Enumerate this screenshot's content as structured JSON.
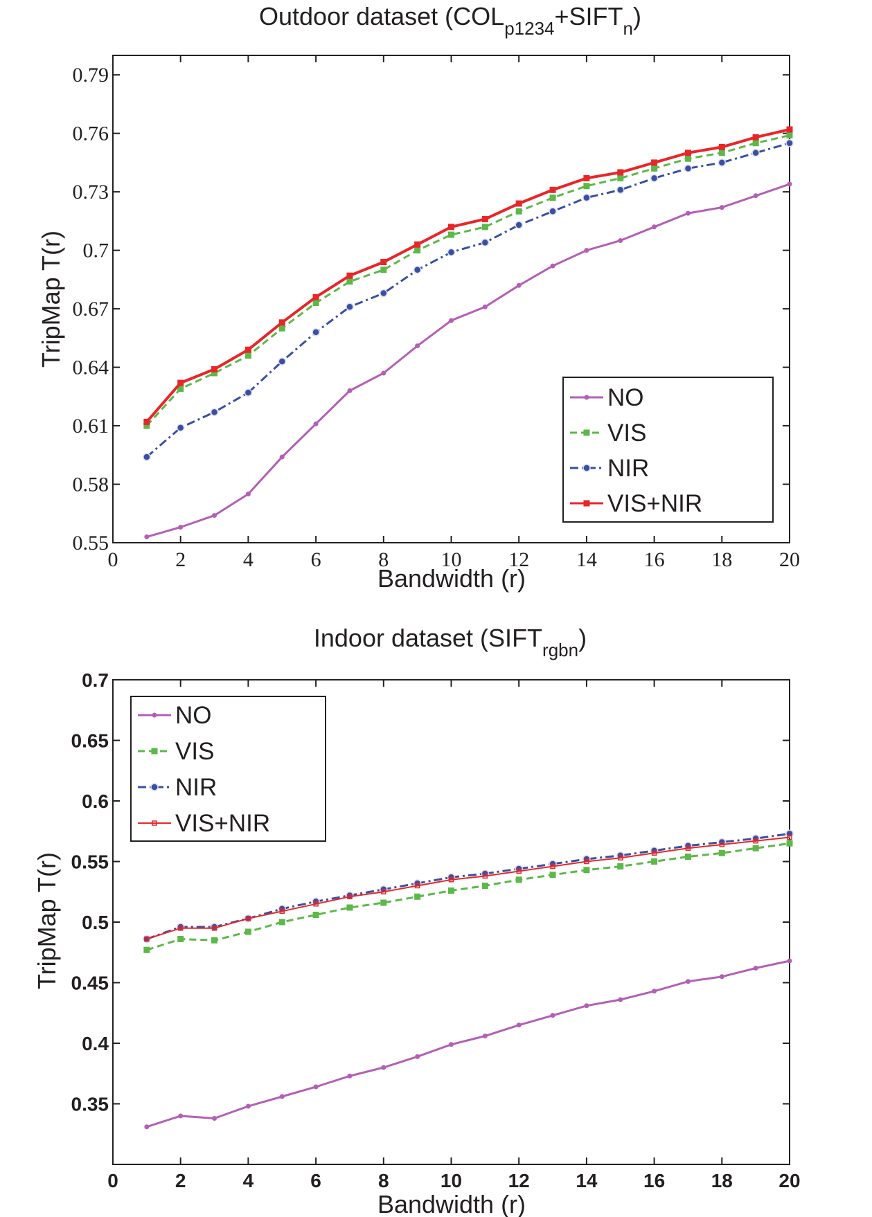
{
  "chart_data": [
    {
      "type": "line",
      "title": "Outdoor dataset (COL",
      "title_sub1": "p1234",
      "title_mid": "+SIFT",
      "title_sub2": "n",
      "title_end": ")",
      "xlabel": "Bandwidth (r)",
      "ylabel": "TripMap T(r)",
      "xlim": [
        0,
        20
      ],
      "ylim": [
        0.55,
        0.8
      ],
      "xticks": [
        "0",
        "2",
        "4",
        "6",
        "8",
        "10",
        "12",
        "14",
        "16",
        "18",
        "20"
      ],
      "yticks": [
        "0.55",
        "0.58",
        "0.61",
        "0.64",
        "0.67",
        "0.7",
        "0.73",
        "0.76",
        "0.79"
      ],
      "legend_position": "lower-right",
      "grid": false,
      "x": [
        1,
        2,
        3,
        4,
        5,
        6,
        7,
        8,
        9,
        10,
        11,
        12,
        13,
        14,
        15,
        16,
        17,
        18,
        19,
        20
      ],
      "series": [
        {
          "name": "NO",
          "color": "#b35fb5",
          "style": "solid",
          "marker": "dot",
          "values": [
            0.553,
            0.558,
            0.564,
            0.575,
            0.594,
            0.611,
            0.628,
            0.637,
            0.651,
            0.664,
            0.671,
            0.682,
            0.692,
            0.7,
            0.705,
            0.712,
            0.719,
            0.722,
            0.728,
            0.734
          ]
        },
        {
          "name": "VIS",
          "color": "#5cb848",
          "style": "dashed",
          "marker": "square",
          "values": [
            0.61,
            0.629,
            0.637,
            0.646,
            0.66,
            0.673,
            0.684,
            0.69,
            0.7,
            0.708,
            0.712,
            0.72,
            0.727,
            0.733,
            0.737,
            0.742,
            0.747,
            0.75,
            0.755,
            0.759
          ]
        },
        {
          "name": "NIR",
          "color": "#3a4fa0",
          "style": "dashdot",
          "marker": "circle",
          "values": [
            0.594,
            0.609,
            0.617,
            0.627,
            0.643,
            0.658,
            0.671,
            0.678,
            0.69,
            0.699,
            0.704,
            0.713,
            0.72,
            0.727,
            0.731,
            0.737,
            0.742,
            0.745,
            0.75,
            0.755
          ]
        },
        {
          "name": "VIS+NIR",
          "color": "#e8262a",
          "style": "solid",
          "marker": "square",
          "values": [
            0.612,
            0.632,
            0.639,
            0.649,
            0.663,
            0.676,
            0.687,
            0.694,
            0.703,
            0.712,
            0.716,
            0.724,
            0.731,
            0.737,
            0.74,
            0.745,
            0.75,
            0.753,
            0.758,
            0.762
          ]
        }
      ]
    },
    {
      "type": "line",
      "title": "Indoor dataset (SIFT",
      "title_sub1": "rgbn",
      "title_end": ")",
      "xlabel": "Bandwidth (r)",
      "ylabel": "TripMap T(r)",
      "xlim": [
        0,
        20
      ],
      "ylim": [
        0.3,
        0.7
      ],
      "xticks": [
        "0",
        "2",
        "4",
        "6",
        "8",
        "10",
        "12",
        "14",
        "16",
        "18",
        "20"
      ],
      "yticks": [
        "0.35",
        "0.4",
        "0.45",
        "0.5",
        "0.55",
        "0.6",
        "0.65",
        "0.7"
      ],
      "legend_position": "top-left",
      "grid": false,
      "x": [
        1,
        2,
        3,
        4,
        5,
        6,
        7,
        8,
        9,
        10,
        11,
        12,
        13,
        14,
        15,
        16,
        17,
        18,
        19,
        20
      ],
      "series": [
        {
          "name": "NO",
          "color": "#b35fb5",
          "style": "solid",
          "marker": "dot",
          "values": [
            0.331,
            0.34,
            0.338,
            0.348,
            0.356,
            0.364,
            0.373,
            0.38,
            0.389,
            0.399,
            0.406,
            0.415,
            0.423,
            0.431,
            0.436,
            0.443,
            0.451,
            0.455,
            0.462,
            0.468
          ]
        },
        {
          "name": "VIS",
          "color": "#5cb848",
          "style": "dashed",
          "marker": "square",
          "values": [
            0.477,
            0.486,
            0.485,
            0.492,
            0.5,
            0.506,
            0.512,
            0.516,
            0.521,
            0.526,
            0.53,
            0.535,
            0.539,
            0.543,
            0.546,
            0.55,
            0.554,
            0.557,
            0.561,
            0.565
          ]
        },
        {
          "name": "NIR",
          "color": "#3a4fa0",
          "style": "dashdot",
          "marker": "circle",
          "values": [
            0.486,
            0.496,
            0.496,
            0.503,
            0.511,
            0.517,
            0.522,
            0.527,
            0.532,
            0.537,
            0.54,
            0.544,
            0.548,
            0.552,
            0.555,
            0.559,
            0.563,
            0.566,
            0.569,
            0.573
          ]
        },
        {
          "name": "VIS+NIR",
          "color": "#e8262a",
          "style": "solid_thin",
          "marker": "small-square",
          "values": [
            0.486,
            0.495,
            0.495,
            0.503,
            0.509,
            0.515,
            0.521,
            0.525,
            0.53,
            0.535,
            0.538,
            0.542,
            0.546,
            0.55,
            0.553,
            0.557,
            0.561,
            0.564,
            0.567,
            0.57
          ]
        }
      ]
    }
  ]
}
